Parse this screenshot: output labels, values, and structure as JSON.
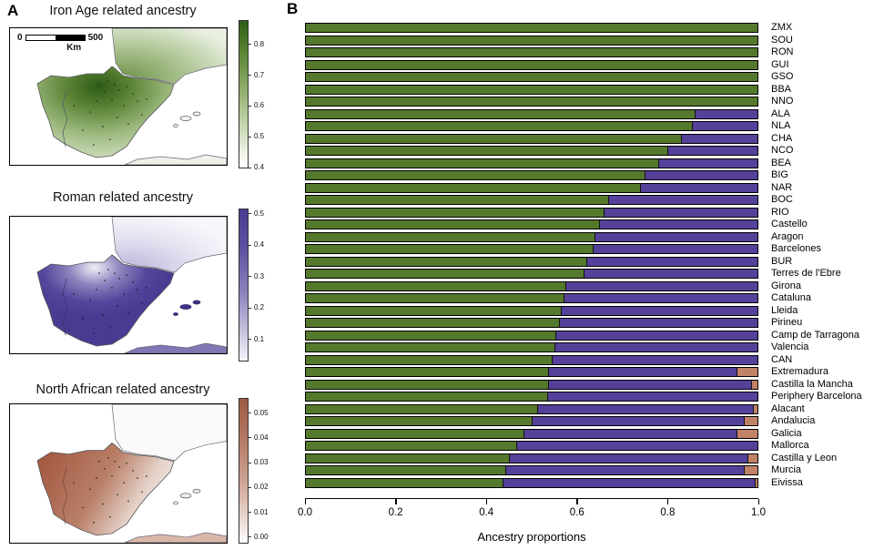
{
  "figure": {
    "panel_a_label": "A",
    "panel_b_label": "B"
  },
  "maps": [
    {
      "title": "Iron Age related ancestry",
      "accent_color": "#2f5c17",
      "scalebar": {
        "start": "0",
        "end": "500",
        "unit": "Km"
      },
      "colorbar": {
        "ticks": [
          "0.8",
          "0.7",
          "0.6",
          "0.5",
          "0.4"
        ],
        "first_pos": 16,
        "last_pos": 100
      }
    },
    {
      "title": "Roman related ancestry",
      "accent_color": "#4a3b92",
      "colorbar": {
        "ticks": [
          "0.5",
          "0.4",
          "0.3",
          "0.2",
          "0.1"
        ],
        "first_pos": 3,
        "last_pos": 86
      }
    },
    {
      "title": "North African related ancestry",
      "accent_color": "#9e5a45",
      "colorbar": {
        "ticks": [
          "0.05",
          "0.04",
          "0.03",
          "0.02",
          "0.01",
          "0.00"
        ],
        "first_pos": 10,
        "last_pos": 96
      }
    }
  ],
  "chart_data": {
    "type": "bar",
    "orientation": "horizontal",
    "stacked": true,
    "title": "",
    "xlabel": "Ancestry proportions",
    "ylabel": "",
    "xlim": [
      0.0,
      1.0
    ],
    "xtick_labels": [
      "0.0",
      "0.2",
      "0.4",
      "0.6",
      "0.8",
      "1.0"
    ],
    "grid": false,
    "legend": "none",
    "bar_outline_color": "#000000",
    "categories": [
      "ZMX",
      "SOU",
      "RON",
      "GUI",
      "GSO",
      "BBA",
      "NNO",
      "ALA",
      "NLA",
      "CHA",
      "NCO",
      "BEA",
      "BIG",
      "NAR",
      "BOC",
      "RIO",
      "Castello",
      "Aragon",
      "Barcelones",
      "BUR",
      "Terres de l'Ebre",
      "Girona",
      "Cataluna",
      "Lleida",
      "Pirineu",
      "Camp de Tarragona",
      "Valencia",
      "CAN",
      "Extremadura",
      "Castilla la Mancha",
      "Periphery Barcelona",
      "Alacant",
      "Andalucia",
      "Galicia",
      "Mallorca",
      "Castilla y Leon",
      "Murcia",
      "Eivissa"
    ],
    "series": [
      {
        "name": "Iron Age related ancestry",
        "key": "iron-age",
        "color": "#55792c",
        "values": [
          1.0,
          1.0,
          1.0,
          1.0,
          1.0,
          1.0,
          1.0,
          0.86,
          0.855,
          0.83,
          0.8,
          0.78,
          0.75,
          0.74,
          0.67,
          0.66,
          0.65,
          0.64,
          0.635,
          0.62,
          0.615,
          0.575,
          0.57,
          0.565,
          0.56,
          0.553,
          0.55,
          0.545,
          0.536,
          0.536,
          0.535,
          0.512,
          0.5,
          0.482,
          0.466,
          0.45,
          0.442,
          0.435
        ]
      },
      {
        "name": "Roman related ancestry",
        "key": "roman",
        "color": "#55409a",
        "values": [
          0,
          0,
          0,
          0,
          0,
          0,
          0,
          0.14,
          0.145,
          0.17,
          0.2,
          0.22,
          0.25,
          0.26,
          0.33,
          0.34,
          0.35,
          0.36,
          0.365,
          0.38,
          0.385,
          0.425,
          0.43,
          0.435,
          0.44,
          0.447,
          0.45,
          0.455,
          0.417,
          0.449,
          0.465,
          0.478,
          0.47,
          0.471,
          0.534,
          0.527,
          0.527,
          0.559
        ]
      },
      {
        "name": "North African related ancestry",
        "key": "north-african",
        "color": "#c28268",
        "values": [
          0,
          0,
          0,
          0,
          0,
          0,
          0,
          0,
          0,
          0,
          0,
          0,
          0,
          0,
          0,
          0,
          0,
          0,
          0,
          0,
          0,
          0,
          0,
          0,
          0,
          0,
          0,
          0,
          0.047,
          0.015,
          0,
          0.01,
          0.03,
          0.047,
          0,
          0.023,
          0.031,
          0.006
        ]
      }
    ]
  }
}
